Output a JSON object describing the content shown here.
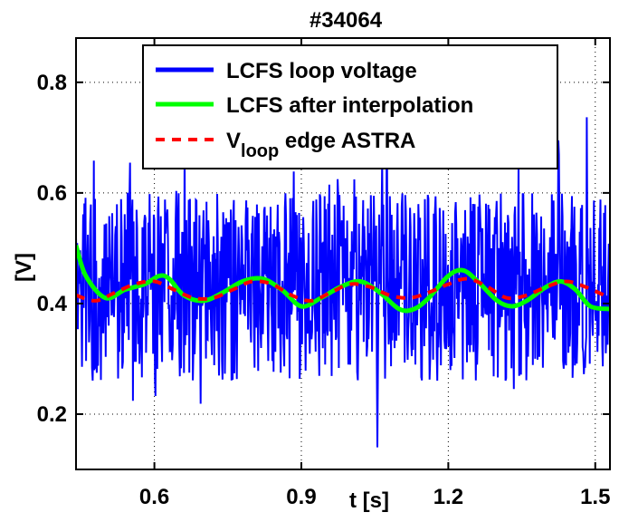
{
  "chart_data": {
    "type": "line",
    "title": "#34064",
    "xlabel": "t [s]",
    "ylabel": "[V]",
    "xlim": [
      0.44,
      1.53
    ],
    "ylim": [
      0.1,
      0.88
    ],
    "xticks": [
      0.6,
      0.9,
      1.2,
      1.5
    ],
    "xtick_labels": [
      "0.6",
      "0.9",
      "1.2",
      "1.5"
    ],
    "yticks": [
      0.2,
      0.4,
      0.6,
      0.8
    ],
    "ytick_labels": [
      "0.2",
      "0.4",
      "0.6",
      "0.8"
    ],
    "grid": true,
    "legend_position": "top-right",
    "series": [
      {
        "name": "LCFS loop voltage",
        "color": "#0000ff",
        "style": "solid",
        "noisy": true,
        "x_range": [
          0.44,
          1.53
        ],
        "mean": 0.43,
        "fluctuation_range": [
          0.14,
          0.79
        ]
      },
      {
        "name": "LCFS after interpolation",
        "color": "#00ff00",
        "style": "solid",
        "x": [
          0.44,
          0.46,
          0.5,
          0.54,
          0.58,
          0.61,
          0.63,
          0.66,
          0.7,
          0.74,
          0.78,
          0.82,
          0.86,
          0.9,
          0.94,
          0.98,
          1.02,
          1.06,
          1.1,
          1.13,
          1.16,
          1.2,
          1.23,
          1.26,
          1.3,
          1.33,
          1.36,
          1.4,
          1.43,
          1.46,
          1.49,
          1.53
        ],
        "y": [
          0.505,
          0.45,
          0.41,
          0.425,
          0.435,
          0.45,
          0.445,
          0.415,
          0.405,
          0.42,
          0.44,
          0.445,
          0.425,
          0.395,
          0.41,
          0.43,
          0.44,
          0.42,
          0.39,
          0.39,
          0.41,
          0.45,
          0.46,
          0.44,
          0.405,
          0.395,
          0.405,
          0.43,
          0.44,
          0.425,
          0.395,
          0.39
        ]
      },
      {
        "name": "V_loop edge ASTRA",
        "legend_main": "V",
        "legend_sub": "loop",
        "legend_rest": " edge ASTRA",
        "color": "#ff0000",
        "style": "dashed",
        "x": [
          0.44,
          0.48,
          0.52,
          0.56,
          0.6,
          0.64,
          0.68,
          0.72,
          0.76,
          0.8,
          0.84,
          0.88,
          0.92,
          0.96,
          1.0,
          1.04,
          1.08,
          1.12,
          1.16,
          1.2,
          1.24,
          1.28,
          1.32,
          1.36,
          1.4,
          1.44,
          1.48,
          1.53
        ],
        "y": [
          0.415,
          0.405,
          0.42,
          0.435,
          0.44,
          0.425,
          0.41,
          0.41,
          0.425,
          0.44,
          0.435,
          0.415,
          0.405,
          0.42,
          0.435,
          0.43,
          0.415,
          0.41,
          0.42,
          0.435,
          0.445,
          0.43,
          0.41,
          0.415,
          0.43,
          0.44,
          0.43,
          0.41
        ]
      }
    ]
  }
}
